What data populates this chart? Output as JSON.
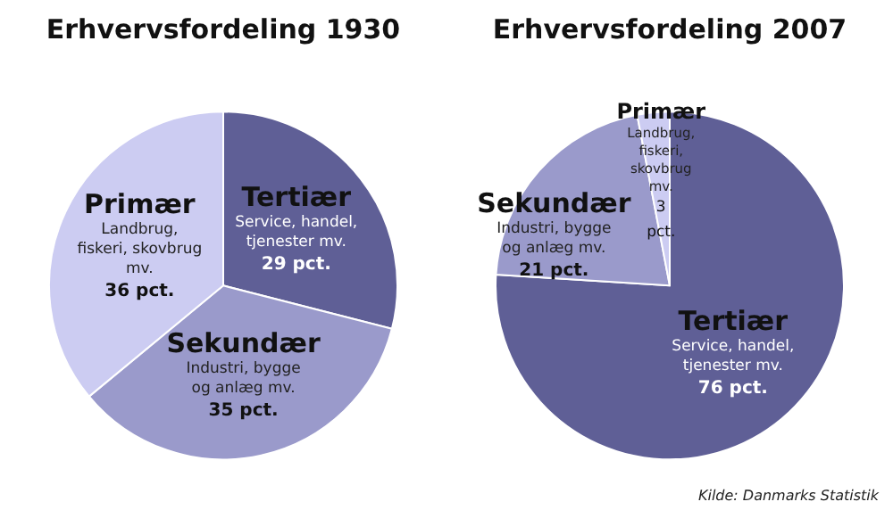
{
  "chart_data": [
    {
      "type": "pie",
      "title": "Erhvervsfordeling 1930",
      "categories": [
        "Tertiær",
        "Sekundær",
        "Primær"
      ],
      "values": [
        29,
        35,
        36
      ],
      "colors": [
        "#5f5f96",
        "#9a9acb",
        "#ccccf2"
      ],
      "value_labels": [
        "29 pct.",
        "35 pct.",
        "36 pct."
      ],
      "annotations": [
        "Service, handel, tjenester mv.",
        "Industri, bygge og anlæg mv.",
        "Landbrug, fiskeri, skovbrug mv."
      ],
      "legend": false
    },
    {
      "type": "pie",
      "title": "Erhvervsfordeling 2007",
      "categories": [
        "Tertiær",
        "Sekundær",
        "Primær"
      ],
      "values": [
        76,
        21,
        3
      ],
      "colors": [
        "#5f5f96",
        "#9a9acb",
        "#ccccf2"
      ],
      "value_labels": [
        "76 pct.",
        "21 pct.",
        "3 pct."
      ],
      "annotations": [
        "Service, handel, tjenester mv.",
        "Industri, bygge og anlæg mv.",
        "Landbrug, fiskeri, skovbrug mv.",
        "Kilde: Danmarks Statistik"
      ],
      "legend": false
    }
  ]
}
